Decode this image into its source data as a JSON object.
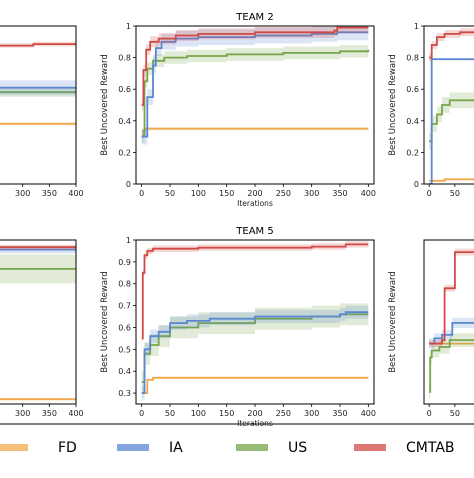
{
  "colors": {
    "FD": "#f0a94c",
    "IA": "#5b87d1",
    "US": "#76a649",
    "CMTAB": "#d04a44",
    "axis": "#000000"
  },
  "legend": {
    "items": [
      "FD",
      "IA",
      "US",
      "CMTAB"
    ]
  },
  "chart_data": [
    {
      "id": "left-top",
      "type": "line",
      "title": "",
      "xlabel": "",
      "ylabel": "",
      "xticks": [
        300,
        350,
        400
      ],
      "xlim": [
        250,
        400
      ],
      "ylim": [
        0,
        1.05
      ],
      "yticks": [],
      "series": [
        {
          "name": "CMTAB",
          "x": [
            250,
            310,
            320,
            400
          ],
          "y": [
            0.92,
            0.92,
            0.93,
            0.93
          ],
          "band": 0.015
        },
        {
          "name": "IA",
          "x": [
            250,
            400
          ],
          "y": [
            0.64,
            0.64
          ],
          "band": 0.05
        },
        {
          "name": "US",
          "x": [
            250,
            400
          ],
          "y": [
            0.61,
            0.61
          ],
          "band": 0.03
        },
        {
          "name": "FD",
          "x": [
            250,
            400
          ],
          "y": [
            0.4,
            0.4
          ],
          "band": 0.01
        }
      ]
    },
    {
      "id": "team-2",
      "type": "line",
      "title": "TEAM 2",
      "xlabel": "Iterations",
      "ylabel": "Best Uncovered Reward",
      "xticks": [
        0,
        50,
        100,
        150,
        200,
        250,
        300,
        350,
        400
      ],
      "xlim": [
        -10,
        410
      ],
      "ylim": [
        0,
        1.0
      ],
      "yticks": [
        0.0,
        0.2,
        0.4,
        0.6,
        0.8,
        1.0
      ],
      "series": [
        {
          "name": "CMTAB",
          "x": [
            0,
            3,
            8,
            15,
            30,
            60,
            100,
            200,
            300,
            340,
            345,
            400
          ],
          "y": [
            0.5,
            0.72,
            0.85,
            0.9,
            0.92,
            0.94,
            0.95,
            0.96,
            0.96,
            0.97,
            0.99,
            0.99
          ],
          "band": 0.035
        },
        {
          "name": "IA",
          "x": [
            0,
            10,
            20,
            25,
            35,
            60,
            100,
            200,
            300,
            340,
            345,
            400
          ],
          "y": [
            0.3,
            0.55,
            0.75,
            0.86,
            0.9,
            0.92,
            0.93,
            0.94,
            0.95,
            0.95,
            0.96,
            0.96
          ],
          "band": 0.05
        },
        {
          "name": "US",
          "x": [
            0,
            5,
            10,
            20,
            40,
            80,
            150,
            250,
            350,
            400
          ],
          "y": [
            0.3,
            0.65,
            0.73,
            0.78,
            0.8,
            0.81,
            0.82,
            0.83,
            0.84,
            0.85
          ],
          "band": 0.04
        },
        {
          "name": "FD",
          "x": [
            0,
            3,
            6,
            400
          ],
          "y": [
            0.3,
            0.34,
            0.35,
            0.35
          ],
          "band": 0.01
        }
      ]
    },
    {
      "id": "right-top",
      "type": "line",
      "title": "",
      "xlabel": "",
      "ylabel": "Best Uncovered Reward",
      "xticks": [
        0,
        50
      ],
      "xlim": [
        -10,
        95
      ],
      "ylim": [
        0,
        1.0
      ],
      "yticks": [
        0.0,
        0.2,
        0.4,
        0.6,
        0.8,
        1.0
      ],
      "series": [
        {
          "name": "CMTAB",
          "x": [
            0,
            5,
            15,
            30,
            60,
            95
          ],
          "y": [
            0.8,
            0.88,
            0.93,
            0.95,
            0.96,
            0.96
          ],
          "band": 0.025
        },
        {
          "name": "IA",
          "x": [
            0,
            4,
            5,
            95
          ],
          "y": [
            0.0,
            0.0,
            0.79,
            0.79
          ],
          "band": 0.0
        },
        {
          "name": "US",
          "x": [
            0,
            5,
            15,
            25,
            40,
            95
          ],
          "y": [
            0.27,
            0.38,
            0.44,
            0.5,
            0.53,
            0.53
          ],
          "band": 0.05
        },
        {
          "name": "FD",
          "x": [
            0,
            30,
            95
          ],
          "y": [
            0.02,
            0.03,
            0.03
          ],
          "band": 0.005
        }
      ]
    },
    {
      "id": "left-bottom",
      "type": "line",
      "title": "",
      "xlabel": "",
      "ylabel": "",
      "xticks": [
        300,
        350,
        400
      ],
      "xlim": [
        250,
        400
      ],
      "ylim": [
        0.25,
        0.93
      ],
      "yticks": [],
      "series": [
        {
          "name": "CMTAB",
          "x": [
            250,
            400
          ],
          "y": [
            0.9,
            0.9
          ],
          "band": 0.01
        },
        {
          "name": "IA",
          "x": [
            250,
            400
          ],
          "y": [
            0.89,
            0.89
          ],
          "band": 0.015
        },
        {
          "name": "US",
          "x": [
            250,
            400
          ],
          "y": [
            0.81,
            0.81
          ],
          "band": 0.06
        },
        {
          "name": "FD",
          "x": [
            250,
            400
          ],
          "y": [
            0.27,
            0.27
          ],
          "band": 0.005
        }
      ]
    },
    {
      "id": "team-5",
      "type": "line",
      "title": "TEAM 5",
      "xlabel": "Iterations",
      "ylabel": "Best Uncovered Reward",
      "xticks": [
        0,
        50,
        100,
        150,
        200,
        250,
        300,
        350,
        400
      ],
      "xlim": [
        -10,
        410
      ],
      "ylim": [
        0.25,
        1.0
      ],
      "yticks": [
        0.3,
        0.4,
        0.5,
        0.6,
        0.7,
        0.8,
        0.9,
        1.0
      ],
      "series": [
        {
          "name": "CMTAB",
          "x": [
            0,
            2,
            5,
            10,
            20,
            50,
            100,
            200,
            300,
            340,
            360,
            400
          ],
          "y": [
            0.55,
            0.85,
            0.93,
            0.95,
            0.96,
            0.96,
            0.965,
            0.965,
            0.97,
            0.97,
            0.98,
            0.98
          ],
          "band": 0.015
        },
        {
          "name": "IA",
          "x": [
            0,
            5,
            15,
            30,
            50,
            80,
            120,
            200,
            300,
            350,
            360,
            400
          ],
          "y": [
            0.3,
            0.5,
            0.56,
            0.58,
            0.62,
            0.63,
            0.64,
            0.65,
            0.65,
            0.66,
            0.67,
            0.67
          ],
          "band": 0.03
        },
        {
          "name": "US",
          "x": [
            0,
            5,
            15,
            30,
            50,
            100,
            200,
            300,
            350,
            400
          ],
          "y": [
            0.35,
            0.48,
            0.52,
            0.56,
            0.6,
            0.62,
            0.64,
            0.65,
            0.66,
            0.66
          ],
          "band": 0.05
        },
        {
          "name": "FD",
          "x": [
            0,
            10,
            20,
            400
          ],
          "y": [
            0.3,
            0.36,
            0.37,
            0.37
          ],
          "band": 0.005
        }
      ]
    },
    {
      "id": "right-bottom",
      "type": "line",
      "title": "",
      "xlabel": "",
      "ylabel": "Best Uncovered Reward",
      "xticks": [
        0,
        50
      ],
      "xlim": [
        -10,
        95
      ],
      "ylim": [
        0.05,
        1.0
      ],
      "yticks": [],
      "series": [
        {
          "name": "CMTAB",
          "x": [
            0,
            25,
            30,
            45,
            50,
            95
          ],
          "y": [
            0.4,
            0.42,
            0.72,
            0.72,
            0.93,
            0.93
          ],
          "band": 0.02
        },
        {
          "name": "IA",
          "x": [
            0,
            10,
            25,
            45,
            95
          ],
          "y": [
            0.4,
            0.43,
            0.45,
            0.52,
            0.52
          ],
          "band": 0.03
        },
        {
          "name": "US",
          "x": [
            0,
            2,
            5,
            20,
            40,
            95
          ],
          "y": [
            0.12,
            0.32,
            0.36,
            0.38,
            0.42,
            0.44
          ],
          "band": 0.04
        },
        {
          "name": "FD",
          "x": [
            0,
            95
          ],
          "y": [
            0.4,
            0.4
          ],
          "band": 0.005
        }
      ]
    }
  ]
}
